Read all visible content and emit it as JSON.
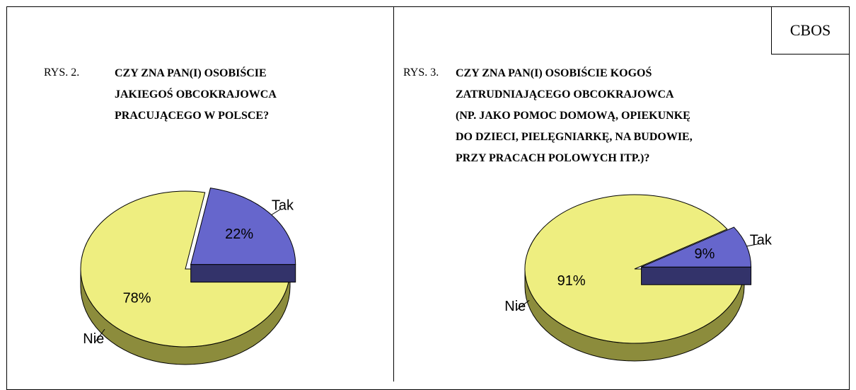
{
  "label": "CBOS",
  "chart_data": [
    {
      "type": "pie",
      "figure": "RYS. 2.",
      "title": [
        "CZY ZNA PAN(I) OSOBIŚCIE",
        "JAKIEGOŚ OBCOKRAJOWCA",
        "PRACUJĄCEGO W POLSCE?"
      ],
      "categories": [
        "Tak",
        "Nie"
      ],
      "values": [
        22,
        78
      ],
      "value_labels": [
        "22%",
        "78%"
      ],
      "colors": [
        "#6666cc",
        "#eeee80"
      ],
      "side_colors": [
        "#33336a",
        "#8c8c3c"
      ]
    },
    {
      "type": "pie",
      "figure": "RYS. 3.",
      "title": [
        "CZY ZNA PAN(I) OSOBIŚCIE KOGOŚ",
        "ZATRUDNIAJĄCEGO OBCOKRAJOWCA",
        "(NP. JAKO POMOC DOMOWĄ, OPIEKUNKĘ",
        "DO DZIECI, PIELĘGNIARKĘ, NA BUDOWIE,",
        "PRZY PRACACH POLOWYCH ITP.)?"
      ],
      "categories": [
        "Tak",
        "Nie"
      ],
      "values": [
        9,
        91
      ],
      "value_labels": [
        "9%",
        "91%"
      ],
      "colors": [
        "#6666cc",
        "#eeee80"
      ],
      "side_colors": [
        "#33336a",
        "#8c8c3c"
      ]
    }
  ]
}
